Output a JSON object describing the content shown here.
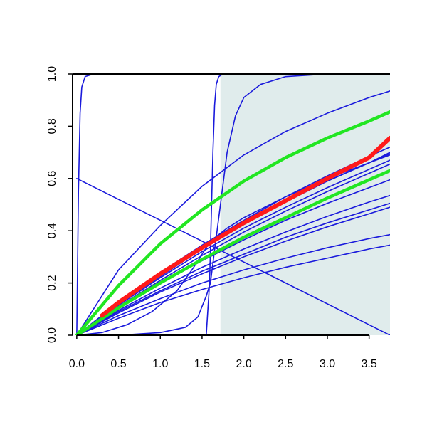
{
  "chart_data": {
    "type": "line",
    "title": "",
    "xlabel": "",
    "ylabel": "",
    "xlim": [
      -0.05,
      3.75
    ],
    "ylim": [
      0,
      1.0
    ],
    "grid": false,
    "legend": "none",
    "x_ticks": [
      "0.0",
      "0.5",
      "1.0",
      "1.5",
      "2.0",
      "2.5",
      "3.0",
      "3.5"
    ],
    "x_tick_values": [
      0,
      0.5,
      1.0,
      1.5,
      2.0,
      2.5,
      3.0,
      3.5
    ],
    "y_ticks": [
      "0.0",
      "0.2",
      "0.4",
      "0.6",
      "0.8",
      "1.0"
    ],
    "y_tick_values": [
      0,
      0.2,
      0.4,
      0.6,
      0.8,
      1.0
    ],
    "shaded_region": {
      "x_from": 1.72,
      "x_to": 3.75,
      "color": "#e0ecec"
    },
    "colors": {
      "thin": "#1a1adc",
      "highlight": "#ff1a1a",
      "green": "#22e622",
      "frame": "#000000"
    },
    "series": [
      {
        "style": "thin",
        "x": [
          0,
          0.02,
          0.04,
          0.06,
          0.1,
          0.2,
          3.75
        ],
        "y": [
          0,
          0.55,
          0.85,
          0.95,
          0.99,
          1.0,
          1.0
        ]
      },
      {
        "style": "thin",
        "x": [
          1.55,
          1.59,
          1.61,
          1.63,
          1.65,
          1.67,
          1.7,
          1.75,
          3.75
        ],
        "y": [
          0.0,
          0.2,
          0.45,
          0.7,
          0.88,
          0.96,
          0.99,
          1.0,
          1.0
        ]
      },
      {
        "style": "thin",
        "x": [
          0,
          0.5,
          1.0,
          1.3,
          1.45,
          1.55,
          1.6,
          1.7,
          1.8,
          1.9,
          2.0,
          2.2,
          2.5,
          3.0,
          3.5,
          3.75
        ],
        "y": [
          0.0,
          0.0,
          0.01,
          0.03,
          0.07,
          0.15,
          0.2,
          0.45,
          0.7,
          0.84,
          0.91,
          0.96,
          0.99,
          1.0,
          1.0,
          1.0
        ]
      },
      {
        "style": "thin",
        "x": [
          0,
          0.5,
          1.0,
          1.5,
          2.0,
          2.5,
          3.0,
          3.5,
          3.75
        ],
        "y": [
          0.0,
          0.25,
          0.42,
          0.57,
          0.69,
          0.78,
          0.85,
          0.91,
          0.935
        ]
      },
      {
        "style": "thin",
        "x": [
          0,
          3.75
        ],
        "y": [
          0.6,
          0.0
        ]
      },
      {
        "style": "thin",
        "x": [
          0,
          0.3,
          0.6,
          0.9,
          1.2,
          1.4,
          1.6,
          1.8,
          2.0,
          2.5,
          3.0,
          3.5,
          3.75
        ],
        "y": [
          0.0,
          0.01,
          0.04,
          0.09,
          0.17,
          0.26,
          0.36,
          0.41,
          0.45,
          0.53,
          0.6,
          0.66,
          0.7
        ]
      },
      {
        "style": "thin",
        "x": [
          0,
          0.5,
          1.0,
          1.5,
          2.0,
          2.5,
          3.0,
          3.5,
          3.75
        ],
        "y": [
          0.0,
          0.125,
          0.24,
          0.345,
          0.44,
          0.53,
          0.61,
          0.685,
          0.72
        ]
      },
      {
        "style": "thin",
        "x": [
          0,
          0.5,
          1.0,
          1.5,
          2.0,
          2.5,
          3.0,
          3.5,
          3.75
        ],
        "y": [
          0.0,
          0.12,
          0.23,
          0.33,
          0.425,
          0.51,
          0.59,
          0.66,
          0.695
        ]
      },
      {
        "style": "thin",
        "x": [
          0,
          0.5,
          1.0,
          1.5,
          2.0,
          2.5,
          3.0,
          3.5,
          3.75
        ],
        "y": [
          0.0,
          0.115,
          0.22,
          0.32,
          0.41,
          0.49,
          0.565,
          0.635,
          0.67
        ]
      },
      {
        "style": "thin",
        "x": [
          0,
          0.5,
          1.0,
          1.5,
          2.0,
          2.5,
          3.0,
          3.5,
          3.75
        ],
        "y": [
          0.0,
          0.105,
          0.2,
          0.285,
          0.365,
          0.44,
          0.505,
          0.565,
          0.595
        ]
      },
      {
        "style": "thin",
        "x": [
          0,
          0.5,
          1.0,
          1.5,
          2.0,
          2.5,
          3.0,
          3.5,
          3.75
        ],
        "y": [
          0.0,
          0.095,
          0.18,
          0.26,
          0.33,
          0.395,
          0.455,
          0.51,
          0.535
        ]
      },
      {
        "style": "thin",
        "x": [
          0,
          0.5,
          1.0,
          1.5,
          2.0,
          2.5,
          3.0,
          3.5,
          3.75
        ],
        "y": [
          0.0,
          0.09,
          0.17,
          0.245,
          0.31,
          0.375,
          0.43,
          0.48,
          0.505
        ]
      },
      {
        "style": "thin",
        "x": [
          0,
          0.5,
          1.0,
          1.5,
          2.0,
          2.5,
          3.0,
          3.5,
          3.75
        ],
        "y": [
          0.0,
          0.085,
          0.165,
          0.235,
          0.3,
          0.36,
          0.415,
          0.465,
          0.49
        ]
      },
      {
        "style": "thin",
        "x": [
          0,
          0.5,
          1.0,
          1.5,
          2.0,
          2.5,
          3.0,
          3.5,
          3.75
        ],
        "y": [
          0.0,
          0.075,
          0.14,
          0.2,
          0.25,
          0.295,
          0.335,
          0.37,
          0.385
        ]
      },
      {
        "style": "thin",
        "x": [
          0,
          0.5,
          1.0,
          1.5,
          2.0,
          2.5,
          3.0,
          3.5,
          3.75
        ],
        "y": [
          0.0,
          0.065,
          0.125,
          0.175,
          0.22,
          0.26,
          0.295,
          0.33,
          0.345
        ]
      },
      {
        "style": "thin",
        "x": [
          0,
          0.5,
          1.0,
          1.5,
          2.0,
          2.5,
          3.0,
          3.5,
          3.75
        ],
        "y": [
          0.0,
          0.12,
          0.225,
          0.33,
          0.425,
          0.51,
          0.59,
          0.66,
          0.69
        ]
      },
      {
        "style": "thin",
        "x": [
          0,
          0.5,
          1.0,
          1.5,
          2.0,
          2.5,
          3.0,
          3.5,
          3.75
        ],
        "y": [
          0.0,
          0.11,
          0.21,
          0.305,
          0.395,
          0.475,
          0.55,
          0.62,
          0.655
        ]
      },
      {
        "style": "green",
        "x": [
          0,
          0.5,
          1.0,
          1.5,
          2.0,
          2.5,
          3.0,
          3.5,
          3.75
        ],
        "y": [
          0.0,
          0.19,
          0.35,
          0.48,
          0.59,
          0.68,
          0.755,
          0.82,
          0.855
        ]
      },
      {
        "style": "green",
        "x": [
          0,
          0.5,
          1.0,
          1.5,
          2.0,
          2.5,
          3.0,
          3.5,
          3.75
        ],
        "y": [
          0.0,
          0.105,
          0.2,
          0.29,
          0.375,
          0.45,
          0.525,
          0.595,
          0.63
        ]
      },
      {
        "style": "highlight",
        "x": [
          0.3,
          0.5,
          1.0,
          1.5,
          2.0,
          2.5,
          3.0,
          3.5,
          3.75
        ],
        "y": [
          0.075,
          0.125,
          0.235,
          0.335,
          0.43,
          0.515,
          0.6,
          0.68,
          0.755
        ]
      }
    ]
  }
}
